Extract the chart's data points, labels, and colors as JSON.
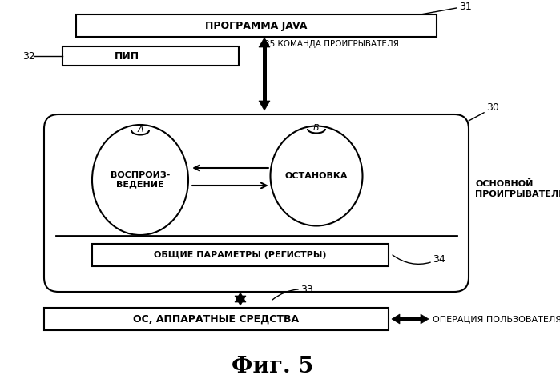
{
  "bg_color": "#ffffff",
  "line_color": "#000000",
  "fig_width": 6.99,
  "fig_height": 4.74,
  "title": "Фиг. 5",
  "label_31": "31",
  "label_32": "32",
  "label_33": "33",
  "label_34": "34",
  "label_35": "35",
  "label_30": "30",
  "label_a": "A",
  "label_b": "B",
  "text_java": "ПРОГРАММА JAVA",
  "text_pip": "ПИП",
  "text_command": "КОМАНДА ПРОИГРЫВАТЕЛЯ",
  "text_play": "ВОСПРОИЗ-\nВЕДЕНИЕ",
  "text_stop": "ОСТАНОВКА",
  "text_params": "ОБЩИЕ ПАРАМЕТРЫ (РЕГИСТРЫ)",
  "text_os": "ОС, АППАРАТНЫЕ СРЕДСТВА",
  "text_bd": "ОСНОВНОЙ\nПРОИГРЫВАТЕЛЬ BD",
  "text_op": "ОПЕРАЦИЯ ПОЛЬЗОВАТЕЛЯ"
}
